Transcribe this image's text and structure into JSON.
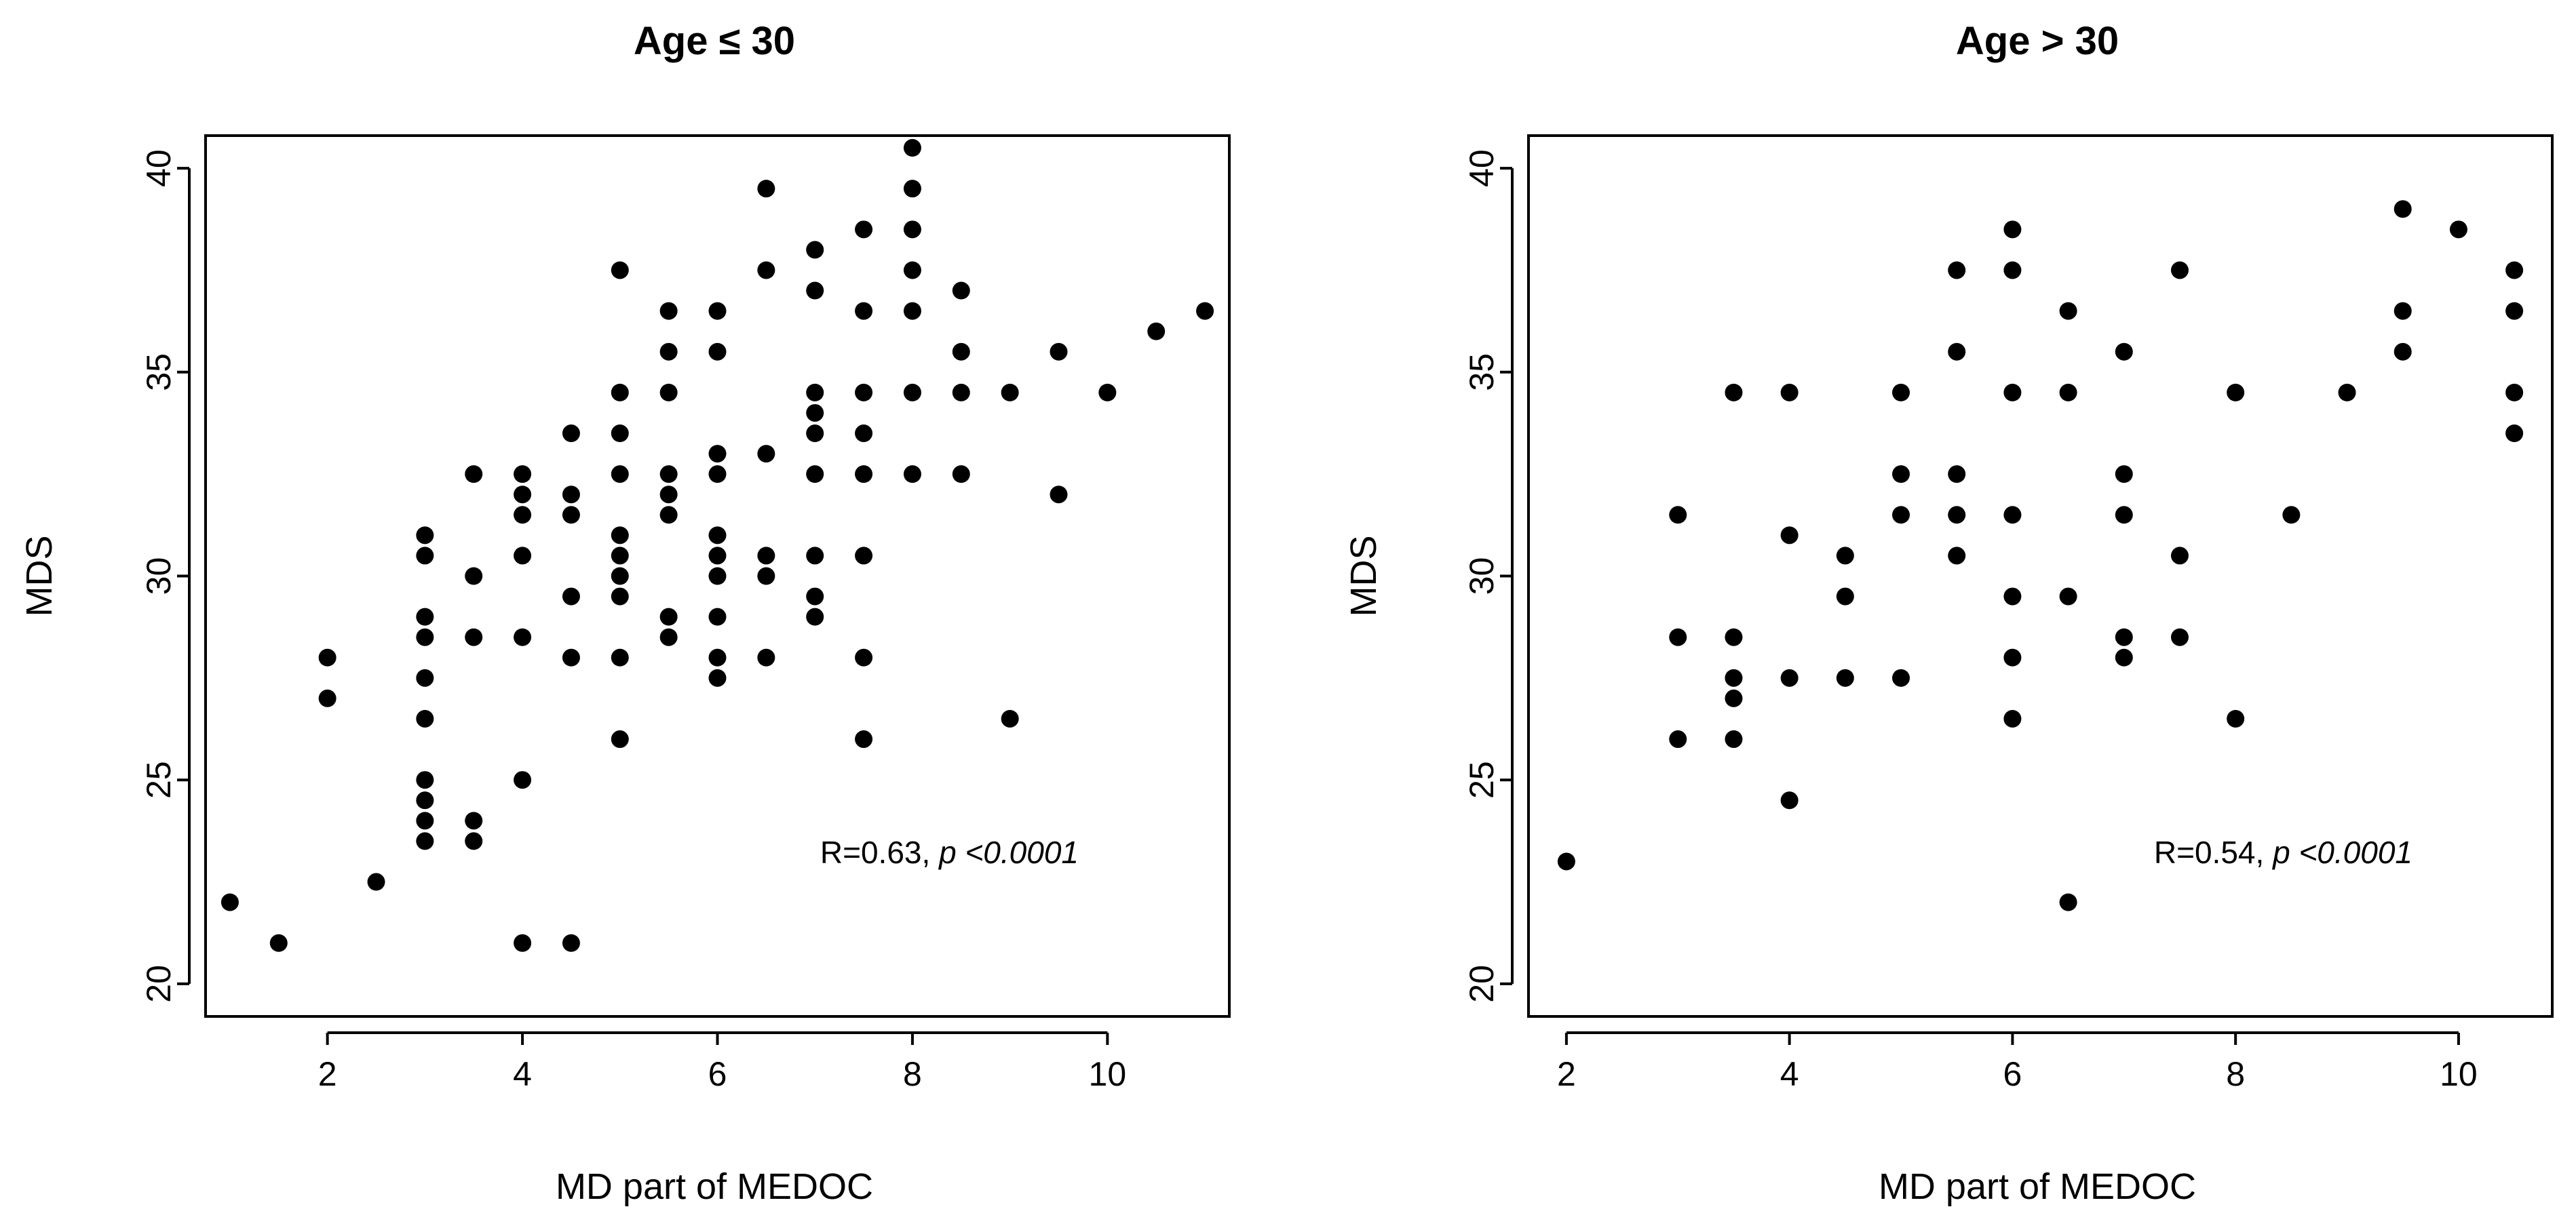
{
  "chart_data": [
    {
      "type": "scatter",
      "title": "Age ≤ 30",
      "xlabel": "MD part of MEDOC",
      "ylabel": "MDS",
      "xlim": [
        0.75,
        11.25
      ],
      "ylim": [
        19.2,
        40.8
      ],
      "xticks": [
        2,
        4,
        6,
        8,
        10
      ],
      "yticks": [
        20,
        25,
        30,
        35,
        40
      ],
      "annotation": {
        "stat": "R=0.63, ",
        "p": "p <0.0001"
      },
      "grid": false,
      "legend": "none",
      "points": [
        [
          1,
          22
        ],
        [
          1.5,
          21
        ],
        [
          2,
          28
        ],
        [
          2,
          27
        ],
        [
          2.5,
          22.5
        ],
        [
          3,
          31
        ],
        [
          3,
          30.5
        ],
        [
          3,
          29
        ],
        [
          3,
          28.5
        ],
        [
          3,
          27.5
        ],
        [
          3,
          26.5
        ],
        [
          3,
          25
        ],
        [
          3,
          24.5
        ],
        [
          3,
          24
        ],
        [
          3,
          23.5
        ],
        [
          3.5,
          32.5
        ],
        [
          3.5,
          30
        ],
        [
          3.5,
          28.5
        ],
        [
          3.5,
          24
        ],
        [
          3.5,
          23.5
        ],
        [
          4,
          32.5
        ],
        [
          4,
          32
        ],
        [
          4,
          31.5
        ],
        [
          4,
          30.5
        ],
        [
          4,
          28.5
        ],
        [
          4,
          25
        ],
        [
          4,
          21
        ],
        [
          4.5,
          33.5
        ],
        [
          4.5,
          32
        ],
        [
          4.5,
          31.5
        ],
        [
          4.5,
          29.5
        ],
        [
          4.5,
          28
        ],
        [
          4.5,
          21
        ],
        [
          5,
          37.5
        ],
        [
          5,
          34.5
        ],
        [
          5,
          33.5
        ],
        [
          5,
          32.5
        ],
        [
          5,
          31
        ],
        [
          5,
          30.5
        ],
        [
          5,
          30
        ],
        [
          5,
          29.5
        ],
        [
          5,
          28
        ],
        [
          5,
          26
        ],
        [
          5.5,
          36.5
        ],
        [
          5.5,
          35.5
        ],
        [
          5.5,
          34.5
        ],
        [
          5.5,
          32.5
        ],
        [
          5.5,
          32
        ],
        [
          5.5,
          31.5
        ],
        [
          5.5,
          29
        ],
        [
          5.5,
          28.5
        ],
        [
          6,
          36.5
        ],
        [
          6,
          35.5
        ],
        [
          6,
          33
        ],
        [
          6,
          32.5
        ],
        [
          6,
          31
        ],
        [
          6,
          30.5
        ],
        [
          6,
          30
        ],
        [
          6,
          29
        ],
        [
          6,
          28
        ],
        [
          6,
          27.5
        ],
        [
          6.5,
          39.5
        ],
        [
          6.5,
          37.5
        ],
        [
          6.5,
          33
        ],
        [
          6.5,
          30.5
        ],
        [
          6.5,
          30
        ],
        [
          6.5,
          28
        ],
        [
          7,
          38
        ],
        [
          7,
          37
        ],
        [
          7,
          34.5
        ],
        [
          7,
          34
        ],
        [
          7,
          33.5
        ],
        [
          7,
          32.5
        ],
        [
          7,
          30.5
        ],
        [
          7,
          29.5
        ],
        [
          7,
          29
        ],
        [
          7.5,
          38.5
        ],
        [
          7.5,
          36.5
        ],
        [
          7.5,
          34.5
        ],
        [
          7.5,
          33.5
        ],
        [
          7.5,
          32.5
        ],
        [
          7.5,
          30.5
        ],
        [
          7.5,
          28
        ],
        [
          7.5,
          26
        ],
        [
          8,
          40.5
        ],
        [
          8,
          39.5
        ],
        [
          8,
          38.5
        ],
        [
          8,
          37.5
        ],
        [
          8,
          36.5
        ],
        [
          8,
          34.5
        ],
        [
          8,
          32.5
        ],
        [
          8.5,
          37
        ],
        [
          8.5,
          35.5
        ],
        [
          8.5,
          34.5
        ],
        [
          8.5,
          32.5
        ],
        [
          9,
          34.5
        ],
        [
          9,
          26.5
        ],
        [
          9.5,
          35.5
        ],
        [
          9.5,
          32
        ],
        [
          10,
          34.5
        ],
        [
          10.5,
          36
        ],
        [
          11,
          36.5
        ]
      ]
    },
    {
      "type": "scatter",
      "title": "Age > 30",
      "xlabel": "MD part of MEDOC",
      "ylabel": "MDS",
      "xlim": [
        1.66,
        10.84
      ],
      "ylim": [
        19.2,
        40.8
      ],
      "xticks": [
        2,
        4,
        6,
        8,
        10
      ],
      "yticks": [
        20,
        25,
        30,
        35,
        40
      ],
      "annotation": {
        "stat": "R=0.54, ",
        "p": "p <0.0001"
      },
      "grid": false,
      "legend": "none",
      "points": [
        [
          2,
          23
        ],
        [
          3,
          31.5
        ],
        [
          3,
          28.5
        ],
        [
          3,
          26
        ],
        [
          3.5,
          34.5
        ],
        [
          3.5,
          28.5
        ],
        [
          3.5,
          27.5
        ],
        [
          3.5,
          27
        ],
        [
          3.5,
          26
        ],
        [
          4,
          34.5
        ],
        [
          4,
          31
        ],
        [
          4,
          27.5
        ],
        [
          4,
          24.5
        ],
        [
          4.5,
          30.5
        ],
        [
          4.5,
          29.5
        ],
        [
          4.5,
          27.5
        ],
        [
          5,
          34.5
        ],
        [
          5,
          32.5
        ],
        [
          5,
          31.5
        ],
        [
          5,
          27.5
        ],
        [
          5.5,
          37.5
        ],
        [
          5.5,
          35.5
        ],
        [
          5.5,
          32.5
        ],
        [
          5.5,
          31.5
        ],
        [
          5.5,
          30.5
        ],
        [
          6,
          38.5
        ],
        [
          6,
          37.5
        ],
        [
          6,
          34.5
        ],
        [
          6,
          31.5
        ],
        [
          6,
          29.5
        ],
        [
          6,
          28
        ],
        [
          6,
          26.5
        ],
        [
          6.5,
          36.5
        ],
        [
          6.5,
          34.5
        ],
        [
          6.5,
          29.5
        ],
        [
          6.5,
          22
        ],
        [
          7,
          35.5
        ],
        [
          7,
          32.5
        ],
        [
          7,
          31.5
        ],
        [
          7,
          28.5
        ],
        [
          7,
          28
        ],
        [
          7.5,
          37.5
        ],
        [
          7.5,
          30.5
        ],
        [
          7.5,
          28.5
        ],
        [
          8,
          34.5
        ],
        [
          8,
          26.5
        ],
        [
          8.5,
          31.5
        ],
        [
          9,
          34.5
        ],
        [
          9.5,
          39
        ],
        [
          9.5,
          36.5
        ],
        [
          9.5,
          35.5
        ],
        [
          10,
          38.5
        ],
        [
          10.5,
          37.5
        ],
        [
          10.5,
          36.5
        ],
        [
          10.5,
          34.5
        ],
        [
          10.5,
          33.5
        ]
      ]
    }
  ]
}
